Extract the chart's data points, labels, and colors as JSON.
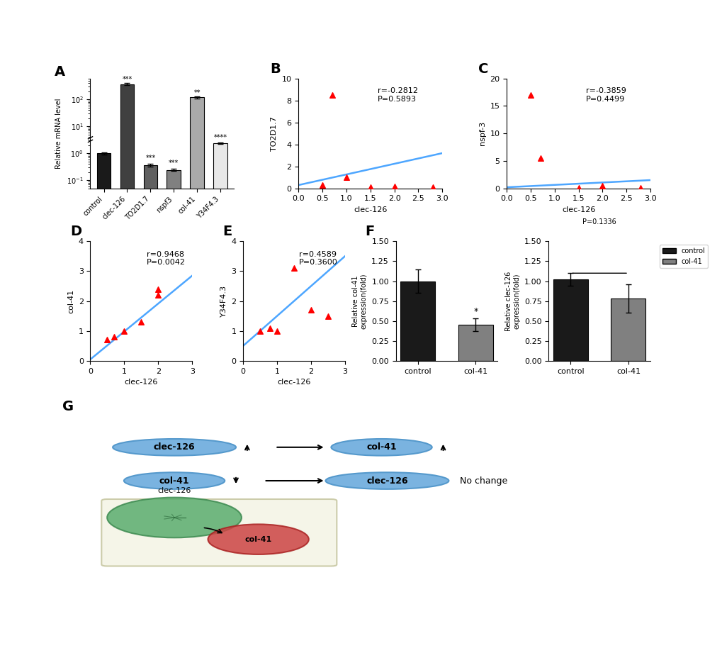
{
  "panel_A": {
    "categories": [
      "control",
      "clec-126",
      "TO2D1.7",
      "nspf3",
      "col-41",
      "Y34F4.3"
    ],
    "values": [
      1.0,
      370.0,
      0.36,
      0.24,
      120.0,
      2.4
    ],
    "errors": [
      0.08,
      25.0,
      0.04,
      0.02,
      10.0,
      0.15
    ],
    "colors": [
      "#1a1a1a",
      "#404040",
      "#606060",
      "#808080",
      "#aaaaaa",
      "#e8e8e8"
    ],
    "significance": [
      "",
      "***",
      "***",
      "***",
      "**",
      "****"
    ],
    "ylabel": "Relative mRNA level",
    "break_y": true
  },
  "panel_B": {
    "scatter_x": [
      0.5,
      0.7,
      1.0,
      1.5,
      2.0,
      2.8
    ],
    "scatter_y": [
      0.3,
      8.5,
      1.0,
      0.1,
      0.2,
      0.1
    ],
    "line_x": [
      0,
      3
    ],
    "line_y": [
      0.3,
      3.2
    ],
    "xlabel": "clec-126",
    "ylabel": "TO2D1.7",
    "annotation": "r=-0.2812\nP=0.5893",
    "xlim": [
      0,
      3
    ],
    "ylim": [
      0,
      10
    ]
  },
  "panel_C": {
    "scatter_x": [
      0.5,
      0.7,
      1.5,
      2.0,
      2.8
    ],
    "scatter_y": [
      17.0,
      5.5,
      0.1,
      0.5,
      0.1
    ],
    "line_x": [
      0,
      3
    ],
    "line_y": [
      0.2,
      1.5
    ],
    "xlabel": "clec-126",
    "ylabel": "nspf-3",
    "annotation": "r=-0.3859\nP=0.4499",
    "xlim": [
      0,
      3
    ],
    "ylim": [
      0,
      20
    ]
  },
  "panel_D": {
    "scatter_x": [
      0.5,
      0.7,
      1.0,
      1.5,
      2.0,
      2.0
    ],
    "scatter_y": [
      0.7,
      0.8,
      1.0,
      1.3,
      2.2,
      2.4
    ],
    "line_x": [
      0,
      3
    ],
    "line_y": [
      0.05,
      2.85
    ],
    "xlabel": "clec-126",
    "ylabel": "col-41",
    "annotation": "r=0.9468\nP=0.0042",
    "xlim": [
      0,
      3
    ],
    "ylim": [
      0,
      4
    ]
  },
  "panel_E": {
    "scatter_x": [
      0.5,
      0.8,
      1.0,
      1.5,
      2.0,
      2.5
    ],
    "scatter_y": [
      1.0,
      1.1,
      1.0,
      3.1,
      1.7,
      1.5
    ],
    "line_x": [
      0,
      3
    ],
    "line_y": [
      0.5,
      3.5
    ],
    "xlabel": "clec-126",
    "ylabel": "Y34F4.3",
    "annotation": "r=0.4589\nP=0.3600",
    "xlim": [
      0,
      3
    ],
    "ylim": [
      0,
      4
    ]
  },
  "panel_F": {
    "categories_col41": [
      "control",
      "col-41"
    ],
    "values_col41": [
      1.0,
      0.45
    ],
    "errors_col41": [
      0.15,
      0.08
    ],
    "significance_col41": [
      "",
      "*"
    ],
    "categories_clec126": [
      "control",
      "col-41"
    ],
    "values_clec126": [
      1.02,
      0.78
    ],
    "errors_clec126": [
      0.08,
      0.18
    ],
    "significance_clec126": [
      "",
      "P=0.1336"
    ],
    "ylabel_col41": "Relative col-41\nexpression(fold)",
    "ylabel_clec126": "Relative clec-126\nexpression(fold)",
    "colors_black": "#1a1a1a",
    "colors_gray": "#808080",
    "ylim": [
      0,
      1.5
    ]
  },
  "panel_G": {
    "row1_left": "clec-126",
    "row1_right": "col-41",
    "row1_arrow_up_left": true,
    "row1_arrow_up_right": true,
    "row2_left": "col-41",
    "row2_right": "clec-126",
    "row2_arrow_down_left": true,
    "row2_text": "No change"
  },
  "legend_labels": [
    "control",
    "col-41"
  ],
  "legend_colors": [
    "#1a1a1a",
    "#808080"
  ]
}
